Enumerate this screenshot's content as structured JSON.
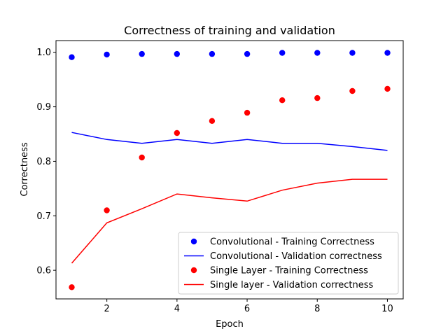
{
  "chart_data": {
    "type": "line",
    "title": "Correctness of training and validation",
    "xlabel": "Epoch",
    "ylabel": "Correctness",
    "xlim": [
      0.55,
      10.45
    ],
    "ylim": [
      0.5475,
      1.0215
    ],
    "x_ticks": [
      2,
      4,
      6,
      8,
      10
    ],
    "y_ticks": [
      0.6,
      0.7,
      0.8,
      0.9,
      1.0
    ],
    "x_tick_labels": [
      "2",
      "4",
      "6",
      "8",
      "10"
    ],
    "y_tick_labels": [
      "0.6",
      "0.7",
      "0.8",
      "0.9",
      "1.0"
    ],
    "grid": false,
    "legend_position": "lower-right",
    "x": [
      1,
      2,
      3,
      4,
      5,
      6,
      7,
      8,
      9,
      10
    ],
    "series": [
      {
        "name": "Convolutional - Training Correctness",
        "style": "markers",
        "color": "#0000ff",
        "values": [
          0.991,
          0.996,
          0.997,
          0.997,
          0.997,
          0.997,
          0.999,
          0.999,
          0.999,
          0.999
        ]
      },
      {
        "name": "Convolutional - Validation correctness",
        "style": "line",
        "color": "#0000ff",
        "values": [
          0.853,
          0.84,
          0.833,
          0.84,
          0.833,
          0.84,
          0.833,
          0.833,
          0.827,
          0.82
        ]
      },
      {
        "name": "Single Layer - Training Correctness",
        "style": "markers",
        "color": "#ff0000",
        "values": [
          0.569,
          0.71,
          0.807,
          0.852,
          0.874,
          0.889,
          0.912,
          0.916,
          0.929,
          0.933
        ]
      },
      {
        "name": "Single layer - Validation correctness",
        "style": "line",
        "color": "#ff0000",
        "values": [
          0.613,
          0.687,
          0.713,
          0.74,
          0.733,
          0.727,
          0.747,
          0.76,
          0.767,
          0.767
        ]
      }
    ]
  }
}
